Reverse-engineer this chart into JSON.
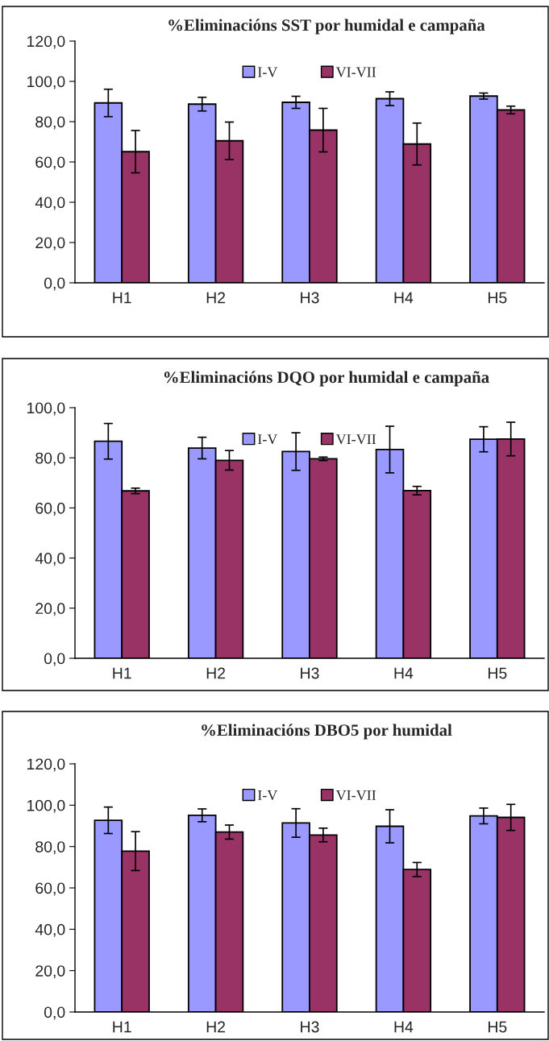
{
  "chart_data": [
    {
      "type": "bar",
      "title": "%Eliminacións SST por humidal e campaña",
      "categories": [
        "H1",
        "H2",
        "H3",
        "H4",
        "H5"
      ],
      "ylim": [
        0,
        120
      ],
      "yticks": [
        {
          "value": 0,
          "label": "0,0"
        },
        {
          "value": 20,
          "label": "20,0"
        },
        {
          "value": 40,
          "label": "40,0"
        },
        {
          "value": 60,
          "label": "60,0"
        },
        {
          "value": 80,
          "label": "80,0"
        },
        {
          "value": 100,
          "label": "100,0"
        },
        {
          "value": 120,
          "label": "120,0"
        }
      ],
      "legend": "top",
      "grid": false,
      "series": [
        {
          "name": "I-V",
          "color": "#9999ff",
          "values": [
            89.3,
            88.7,
            89.6,
            91.4,
            92.7
          ],
          "errors": [
            6.8,
            3.4,
            3.0,
            3.4,
            1.5
          ]
        },
        {
          "name": "VI-VII",
          "color": "#993366",
          "values": [
            65.1,
            70.5,
            75.8,
            68.9,
            85.8
          ],
          "errors": [
            10.5,
            9.3,
            10.8,
            10.4,
            1.9
          ]
        }
      ]
    },
    {
      "type": "bar",
      "title": "%Eliminacións DQO por humidal e campaña",
      "categories": [
        "H1",
        "H2",
        "H3",
        "H4",
        "H5"
      ],
      "ylim": [
        0,
        100
      ],
      "yticks": [
        {
          "value": 0,
          "label": "0,0"
        },
        {
          "value": 20,
          "label": "20,0"
        },
        {
          "value": 40,
          "label": "40,0"
        },
        {
          "value": 60,
          "label": "60,0"
        },
        {
          "value": 80,
          "label": "80,0"
        },
        {
          "value": 100,
          "label": "100,0"
        }
      ],
      "legend": "top",
      "grid": false,
      "series": [
        {
          "name": "I-V",
          "color": "#9999ff",
          "values": [
            86.6,
            83.9,
            82.5,
            83.3,
            87.4
          ],
          "errors": [
            7.1,
            4.3,
            7.5,
            9.3,
            5.0
          ]
        },
        {
          "name": "VI-VII",
          "color": "#993366",
          "values": [
            66.8,
            79.0,
            79.6,
            66.9,
            87.5
          ],
          "errors": [
            1.1,
            3.9,
            0.7,
            1.7,
            6.7
          ]
        }
      ]
    },
    {
      "type": "bar",
      "title": "%Eliminacións DBO5 por humidal",
      "categories": [
        "H1",
        "H2",
        "H3",
        "H4",
        "H5"
      ],
      "ylim": [
        0,
        120
      ],
      "yticks": [
        {
          "value": 0,
          "label": "0,0"
        },
        {
          "value": 20,
          "label": "20,0"
        },
        {
          "value": 40,
          "label": "40,0"
        },
        {
          "value": 60,
          "label": "60,0"
        },
        {
          "value": 80,
          "label": "80,0"
        },
        {
          "value": 100,
          "label": "100,0"
        },
        {
          "value": 120,
          "label": "120,0"
        }
      ],
      "legend": "top",
      "grid": false,
      "series": [
        {
          "name": "I-V",
          "color": "#9999ff",
          "values": [
            92.7,
            95.1,
            91.4,
            89.8,
            94.8
          ],
          "errors": [
            6.4,
            3.1,
            6.9,
            8.0,
            3.8
          ]
        },
        {
          "name": "VI-VII",
          "color": "#993366",
          "values": [
            77.8,
            87.0,
            85.6,
            68.9,
            94.1
          ],
          "errors": [
            9.4,
            3.4,
            3.3,
            3.4,
            6.3
          ]
        }
      ]
    }
  ]
}
